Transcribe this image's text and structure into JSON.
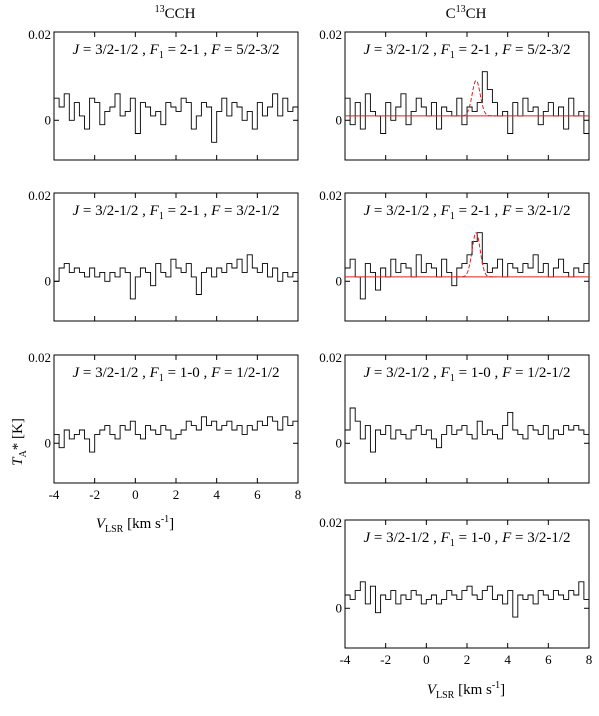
{
  "figure": {
    "column_titles": [
      {
        "sup": "13",
        "text": "CCH"
      },
      {
        "pre": "C",
        "sup": "13",
        "text": "CH"
      }
    ],
    "ylabel": {
      "main": "T",
      "sub": "A",
      "rest": "* [K]"
    },
    "xlabel": {
      "main": "V",
      "sub": "LSR",
      "rest": " [km s",
      "sup": "-1",
      "end": "]"
    },
    "colors": {
      "spectrum": "#000000",
      "fit": "#e02020",
      "axis": "#000000"
    }
  },
  "chart_data": [
    {
      "id": "13CCH-F1-2-1-F-5/2-3/2",
      "type": "line",
      "title": "J = 3/2-1/2 , F1 = 2-1 , F = 5/2-3/2",
      "title_parts": {
        "J": "3/2-1/2",
        "F1": "2-1",
        "F": "5/2-3/2"
      },
      "xlim": [
        -4,
        8
      ],
      "ylim": [
        -0.009,
        0.02
      ],
      "yticks": [
        0,
        0.02
      ],
      "ytick_labels": [
        "0",
        "0.02"
      ],
      "xticks": [
        -4,
        -2,
        0,
        2,
        4,
        6,
        8
      ],
      "xtick_labels": [],
      "x_start": -4,
      "x_step": 0.25,
      "values": [
        0.005,
        0.003,
        0.006,
        0.0,
        0.004,
        0.001,
        -0.002,
        0.005,
        0.004,
        -0.001,
        0.002,
        0.003,
        0.006,
        0.001,
        0.002,
        0.005,
        -0.003,
        0.004,
        0.003,
        0.001,
        0.002,
        -0.001,
        0.004,
        0.003,
        0.002,
        0.005,
        0.004,
        -0.002,
        0.001,
        0.004,
        0.003,
        -0.005,
        0.002,
        0.005,
        0.001,
        0.004,
        0.003,
        0.0,
        0.002,
        -0.002,
        0.004,
        0.001,
        0.003,
        0.006,
        0.001,
        0.005,
        0.002,
        0.003
      ],
      "fit": null
    },
    {
      "id": "C13CH-F1-2-1-F-5/2-3/2",
      "type": "line",
      "title": "J = 3/2-1/2 , F1 = 2-1 , F = 5/2-3/2",
      "title_parts": {
        "J": "3/2-1/2",
        "F1": "2-1",
        "F": "5/2-3/2"
      },
      "xlim": [
        -4,
        8
      ],
      "ylim": [
        -0.009,
        0.02
      ],
      "yticks": [
        0,
        0.02
      ],
      "ytick_labels": [
        "0",
        "0.02"
      ],
      "xticks": [
        -4,
        -2,
        0,
        2,
        4,
        6,
        8
      ],
      "xtick_labels": [],
      "x_start": -4,
      "x_step": 0.25,
      "values": [
        0.005,
        -0.001,
        0.004,
        -0.002,
        0.006,
        0.002,
        0.001,
        -0.003,
        0.004,
        0.0,
        0.003,
        0.006,
        -0.001,
        0.002,
        0.005,
        0.003,
        0.001,
        0.004,
        -0.002,
        0.003,
        0.002,
        0.001,
        0.005,
        -0.001,
        0.003,
        0.002,
        0.004,
        0.011,
        0.007,
        0.004,
        0.001,
        0.002,
        -0.003,
        0.004,
        0.001,
        0.005,
        0.002,
        0.003,
        -0.001,
        0.002,
        0.004,
        0.001,
        0.003,
        -0.002,
        0.005,
        0.001,
        0.002,
        -0.003
      ],
      "fit": {
        "baseline": 0.001,
        "amp": 0.008,
        "center": 2.45,
        "sigma": 0.2
      }
    },
    {
      "id": "13CCH-F1-2-1-F-3/2-1/2",
      "type": "line",
      "title": "J = 3/2-1/2 , F1 = 2-1 , F = 3/2-1/2",
      "title_parts": {
        "J": "3/2-1/2",
        "F1": "2-1",
        "F": "3/2-1/2"
      },
      "xlim": [
        -4,
        8
      ],
      "ylim": [
        -0.009,
        0.02
      ],
      "yticks": [
        0,
        0.02
      ],
      "ytick_labels": [
        "0",
        "0.02"
      ],
      "xticks": [
        -4,
        -2,
        0,
        2,
        4,
        6,
        8
      ],
      "xtick_labels": [],
      "x_start": -4,
      "x_step": 0.25,
      "values": [
        0.0,
        0.003,
        0.004,
        0.002,
        0.003,
        0.002,
        0.001,
        0.003,
        0.001,
        0.002,
        0.0,
        0.002,
        0.001,
        0.003,
        0.002,
        -0.004,
        0.001,
        0.003,
        0.002,
        -0.001,
        0.004,
        0.002,
        0.001,
        0.005,
        0.003,
        0.002,
        0.004,
        0.001,
        -0.003,
        0.002,
        0.003,
        0.001,
        0.003,
        0.002,
        0.004,
        0.003,
        0.005,
        0.002,
        0.006,
        0.003,
        0.002,
        0.004,
        0.001,
        0.003,
        0.0,
        0.002,
        0.001,
        0.002
      ],
      "fit": null
    },
    {
      "id": "C13CH-F1-2-1-F-3/2-1/2",
      "type": "line",
      "title": "J = 3/2-1/2 , F1 = 2-1 , F = 3/2-1/2",
      "title_parts": {
        "J": "3/2-1/2",
        "F1": "2-1",
        "F": "3/2-1/2"
      },
      "xlim": [
        -4,
        8
      ],
      "ylim": [
        -0.009,
        0.02
      ],
      "yticks": [
        0,
        0.02
      ],
      "ytick_labels": [
        "0",
        "0.02"
      ],
      "xticks": [
        -4,
        -2,
        0,
        2,
        4,
        6,
        8
      ],
      "xtick_labels": [],
      "x_start": -4,
      "x_step": 0.25,
      "values": [
        0.003,
        0.005,
        0.001,
        -0.004,
        0.004,
        0.002,
        -0.002,
        0.003,
        0.001,
        0.005,
        0.002,
        0.004,
        0.003,
        0.001,
        0.006,
        0.002,
        0.004,
        0.003,
        0.001,
        0.005,
        0.002,
        -0.001,
        0.003,
        0.004,
        0.006,
        0.009,
        0.011,
        0.004,
        0.002,
        0.003,
        0.005,
        0.001,
        0.004,
        0.003,
        0.002,
        0.004,
        0.003,
        0.006,
        0.002,
        0.004,
        0.001,
        0.003,
        0.005,
        0.002,
        0.001,
        0.003,
        0.002,
        0.004
      ],
      "fit": {
        "baseline": 0.001,
        "amp": 0.01,
        "center": 2.45,
        "sigma": 0.2
      }
    },
    {
      "id": "13CCH-F1-1-0-F-1/2-1/2",
      "type": "line",
      "title": "J = 3/2-1/2 , F1 = 1-0 , F = 1/2-1/2",
      "title_parts": {
        "J": "3/2-1/2",
        "F1": "1-0",
        "F": "1/2-1/2"
      },
      "xlim": [
        -4,
        8
      ],
      "ylim": [
        -0.009,
        0.02
      ],
      "yticks": [
        0,
        0.02
      ],
      "ytick_labels": [
        "0",
        "0.02"
      ],
      "xticks": [
        -4,
        -2,
        0,
        2,
        4,
        6,
        8
      ],
      "xtick_labels": [
        "-4",
        "-2",
        "0",
        "2",
        "4",
        "6",
        "8"
      ],
      "x_start": -4,
      "x_step": 0.25,
      "values": [
        0.002,
        -0.001,
        0.003,
        0.001,
        0.002,
        0.003,
        0.001,
        -0.002,
        0.002,
        0.003,
        0.004,
        0.002,
        0.001,
        0.004,
        0.003,
        0.005,
        0.002,
        0.001,
        0.004,
        0.003,
        0.002,
        0.004,
        0.003,
        0.001,
        0.002,
        0.003,
        0.005,
        0.004,
        0.003,
        0.006,
        0.004,
        0.005,
        0.003,
        0.004,
        0.005,
        0.003,
        0.004,
        0.002,
        0.004,
        0.003,
        0.005,
        0.004,
        0.006,
        0.005,
        0.003,
        0.006,
        0.004,
        0.005
      ],
      "fit": null
    },
    {
      "id": "C13CH-F1-1-0-F-1/2-1/2",
      "type": "line",
      "title": "J = 3/2-1/2 , F1 = 1-0 , F = 1/2-1/2",
      "title_parts": {
        "J": "3/2-1/2",
        "F1": "1-0",
        "F": "1/2-1/2"
      },
      "xlim": [
        -4,
        8
      ],
      "ylim": [
        -0.009,
        0.02
      ],
      "yticks": [
        0,
        0.02
      ],
      "ytick_labels": [
        "0",
        "0.02"
      ],
      "xticks": [
        -4,
        -2,
        0,
        2,
        4,
        6,
        8
      ],
      "xtick_labels": [],
      "x_start": -4,
      "x_step": 0.25,
      "values": [
        0.003,
        0.008,
        0.005,
        0.001,
        0.004,
        -0.002,
        0.003,
        0.002,
        0.004,
        0.001,
        0.003,
        0.002,
        0.001,
        0.003,
        0.004,
        0.002,
        0.003,
        0.001,
        -0.001,
        0.002,
        0.004,
        0.002,
        0.003,
        0.004,
        0.002,
        0.001,
        0.005,
        0.002,
        0.003,
        0.002,
        0.001,
        0.004,
        0.007,
        0.003,
        0.002,
        0.001,
        0.004,
        0.003,
        0.002,
        0.004,
        0.001,
        0.003,
        0.002,
        0.004,
        0.003,
        0.004,
        0.003,
        0.002
      ],
      "fit": null
    },
    {
      "id": "C13CH-F1-1-0-F-3/2-1/2",
      "type": "line",
      "title": "J = 3/2-1/2 , F1 = 1-0 , F = 3/2-1/2",
      "title_parts": {
        "J": "3/2-1/2",
        "F1": "1-0",
        "F": "3/2-1/2"
      },
      "xlim": [
        -4,
        8
      ],
      "ylim": [
        -0.009,
        0.02
      ],
      "yticks": [
        0,
        0.02
      ],
      "ytick_labels": [
        "0",
        "0.02"
      ],
      "xticks": [
        -4,
        -2,
        0,
        2,
        4,
        6,
        8
      ],
      "xtick_labels": [
        "-4",
        "-2",
        "0",
        "2",
        "4",
        "6",
        "8"
      ],
      "x_start": -4,
      "x_step": 0.25,
      "values": [
        0.003,
        0.002,
        0.004,
        0.006,
        0.001,
        0.005,
        -0.001,
        0.003,
        0.002,
        0.004,
        0.001,
        0.003,
        0.002,
        0.004,
        0.003,
        0.001,
        0.002,
        0.003,
        0.001,
        0.002,
        0.004,
        0.003,
        0.002,
        0.004,
        0.005,
        0.003,
        0.002,
        0.004,
        0.005,
        0.002,
        0.003,
        0.001,
        0.004,
        -0.002,
        0.003,
        0.002,
        0.003,
        0.001,
        0.004,
        0.003,
        0.002,
        0.004,
        0.003,
        0.002,
        0.004,
        0.003,
        0.006,
        0.002
      ],
      "fit": null
    }
  ]
}
